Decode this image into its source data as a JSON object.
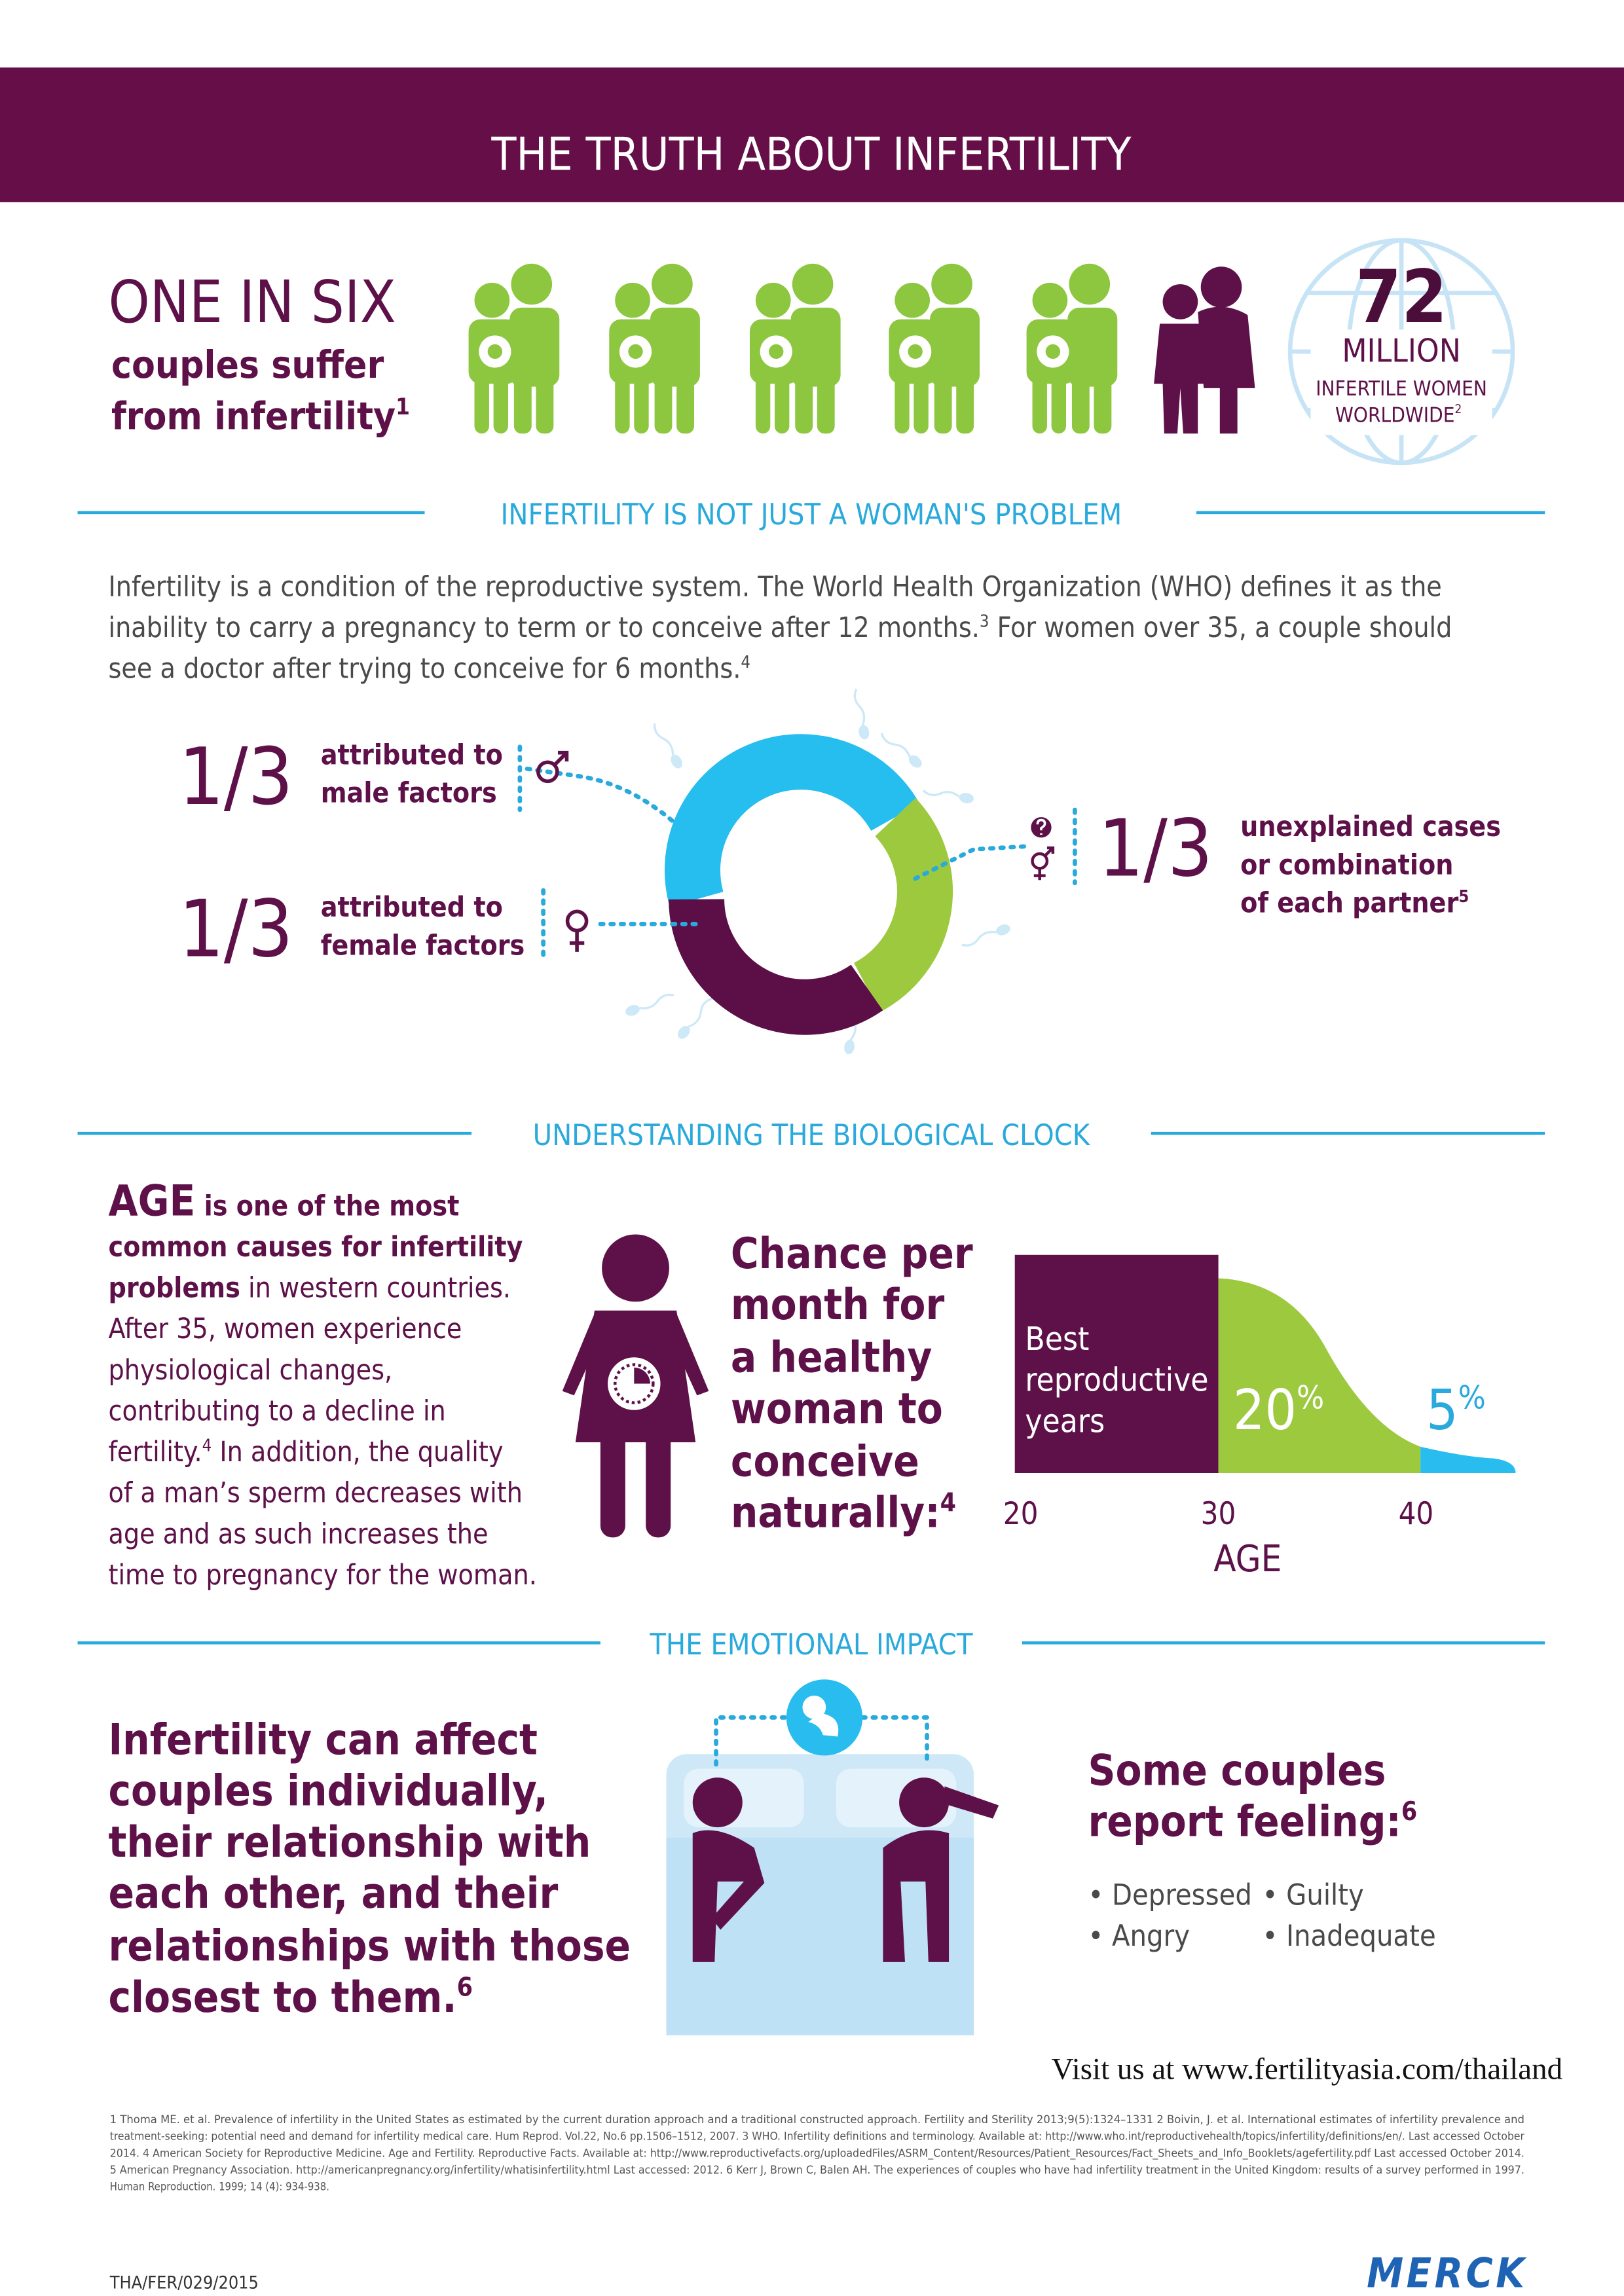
{
  "header": {
    "title": "THE TRUTH ABOUT INFERTILITY"
  },
  "stats": {
    "headline": "ONE IN SIX",
    "lines": [
      "couples suffer",
      "from infertility"
    ],
    "note": "1",
    "globe": {
      "number": "72",
      "unit": "MILLION",
      "lines": [
        "INFERTILE WOMEN",
        "WORLDWIDE"
      ],
      "note": "2"
    }
  },
  "problem": {
    "heading": "INFERTILITY IS NOT JUST A WOMAN'S PROBLEM",
    "paragraph": [
      "Infertility is a condition of the reproductive system. The World Health Organization (WHO) defines it as the",
      "inability to carry a pregnancy to term or to conceive after 12 months.",
      "3",
      " For women over 35, a couple should",
      "see a doctor after trying to conceive for 6 months.",
      "4"
    ],
    "male": {
      "fraction": "1/3",
      "lines": [
        "attributed to",
        "male factors"
      ]
    },
    "female": {
      "fraction": "1/3",
      "lines": [
        "attributed to",
        "female factors"
      ]
    },
    "unexplained": {
      "fraction": "1/3",
      "lines": [
        "unexplained cases",
        "or combination",
        "of each partner"
      ],
      "note": "5"
    }
  },
  "clock": {
    "heading": "UNDERSTANDING THE BIOLOGICAL CLOCK",
    "age_word": "AGE",
    "age_text": [
      " is one of the most",
      "common causes for infertility",
      "problems",
      " in western countries.",
      "After 35, women experience",
      "physiological changes,",
      "contributing to a decline in",
      "fertility.",
      "4",
      " In addition, the quality",
      "of a man’s sperm decreases with",
      "age and as such increases the",
      "time to pregnancy for the woman."
    ],
    "chance": [
      "Chance per",
      "month for",
      "a healthy",
      "woman to",
      "conceive",
      "naturally:"
    ],
    "chance_note": "4",
    "chart": {
      "best": [
        "Best",
        "reproductive",
        "years"
      ],
      "mid": {
        "value": "20",
        "unit": "%"
      },
      "late": {
        "value": "5",
        "unit": "%"
      },
      "ticks": [
        "20",
        "30",
        "40"
      ],
      "axis": "AGE"
    }
  },
  "emotion": {
    "heading": "THE EMOTIONAL IMPACT",
    "statement": [
      "Infertility can affect",
      "couples individually,",
      "their relationship with",
      "each other, and their",
      "relationships with those",
      "closest to them."
    ],
    "statement_note": "6",
    "feeling": [
      "Some couples",
      "report feeling:"
    ],
    "feeling_note": "6",
    "feelings": [
      "• Depressed",
      "• Angry",
      "• Guilty",
      "• Inadequate"
    ]
  },
  "visit": "Visit us at www.fertilityasia.com/thailand",
  "references": [
    "1 Thoma ME. et al. Prevalence of infertility in the United States as estimated by the current duration approach and a traditional constructed approach. Fertility and Sterility 2013;9(5):1324–1331 2 Boivin, J. et al. International estimates of infertility prevalence and",
    "treatment-seeking: potential need and demand for infertility medical care. Hum Reprod. Vol.22, No.6 pp.1506–1512, 2007. 3 WHO. Infertility definitions and terminology. Available at: http://www.who.int/reproductivehealth/topics/infertility/definitions/en/. Last accessed October",
    "2014. 4 American Society for Reproductive Medicine. Age and Fertility. Reproductive Facts. Available at: http://www.reproductivefacts.org/uploadedFiles/ASRM_Content/Resources/Patient_Resources/Fact_Sheets_and_Info_Booklets/agefertility.pdf Last accessed October 2014.",
    "5 American Pregnancy Association. http://americanpregnancy.org/infertility/whatisinfertility.html Last accessed: 2012. 6 Kerr J, Brown C, Balen AH. The experiences of couples who have had infertility treatment in the United Kingdom: results of a survey performed in 1997.",
    "Human Reproduction. 1999; 14 (4): 934-938."
  ],
  "footer": {
    "code": "THA/FER/029/2015",
    "brand": "MERCK"
  }
}
